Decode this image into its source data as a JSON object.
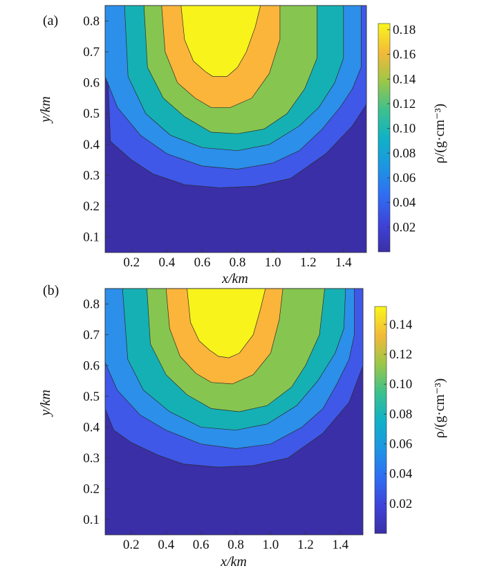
{
  "chart_data": [
    {
      "type": "heatmap",
      "panel_label": "(a)",
      "xlabel": "x/km",
      "ylabel": "y/km",
      "colorbar_label": "ρ/(g·cm⁻³)",
      "x_ticks": [
        0.2,
        0.4,
        0.6,
        0.8,
        1.0,
        1.2,
        1.4
      ],
      "x_tick_labels": [
        "0.2",
        "0.4",
        "0.6",
        "0.8",
        "1.0",
        "1.2",
        "1.4"
      ],
      "y_ticks": [
        0.1,
        0.2,
        0.3,
        0.4,
        0.5,
        0.6,
        0.7,
        0.8
      ],
      "y_tick_labels": [
        "0.1",
        "0.2",
        "0.3",
        "0.4",
        "0.5",
        "0.6",
        "0.7",
        "0.8"
      ],
      "colorbar_ticks": [
        0.02,
        0.04,
        0.06,
        0.08,
        0.1,
        0.12,
        0.14,
        0.16,
        0.18
      ],
      "colorbar_tick_labels": [
        "0.02",
        "0.04",
        "0.06",
        "0.08",
        "0.10",
        "0.12",
        "0.14",
        "0.16",
        "0.18"
      ],
      "xlim": [
        0.05,
        1.53
      ],
      "ylim": [
        0.85,
        0.05
      ],
      "clim": [
        0.0,
        0.185
      ],
      "y_reversed": true,
      "colormap": "parula",
      "contour_bands": [
        {
          "level": 0.027,
          "color": "#3f58e8",
          "region": {
            "x": [
              0.05,
              0.08,
              0.2,
              0.32,
              0.5,
              0.7,
              0.9,
              1.1,
              1.3,
              1.45,
              1.53,
              1.53
            ],
            "y": [
              0.85,
              0.41,
              0.35,
              0.305,
              0.27,
              0.26,
              0.265,
              0.29,
              0.37,
              0.46,
              0.53,
              0.85
            ]
          }
        },
        {
          "level": 0.055,
          "color": "#2c8fe9",
          "region": {
            "x": [
              0.05,
              0.05,
              0.12,
              0.25,
              0.4,
              0.6,
              0.8,
              1.0,
              1.15,
              1.28,
              1.38,
              1.45,
              1.5,
              1.5
            ],
            "y": [
              0.85,
              0.62,
              0.52,
              0.43,
              0.37,
              0.33,
              0.32,
              0.34,
              0.38,
              0.45,
              0.52,
              0.58,
              0.65,
              0.85
            ]
          }
        },
        {
          "level": 0.085,
          "color": "#15b0b4",
          "region": {
            "x": [
              0.16,
              0.18,
              0.28,
              0.42,
              0.6,
              0.8,
              0.98,
              1.15,
              1.26,
              1.35,
              1.4,
              1.4
            ],
            "y": [
              0.85,
              0.62,
              0.5,
              0.43,
              0.39,
              0.38,
              0.4,
              0.46,
              0.52,
              0.6,
              0.68,
              0.85
            ]
          }
        },
        {
          "level": 0.115,
          "color": "#86c650",
          "region": {
            "x": [
              0.27,
              0.29,
              0.38,
              0.5,
              0.65,
              0.8,
              0.95,
              1.08,
              1.18,
              1.25,
              1.25
            ],
            "y": [
              0.85,
              0.65,
              0.55,
              0.49,
              0.44,
              0.435,
              0.45,
              0.5,
              0.58,
              0.68,
              0.85
            ]
          }
        },
        {
          "level": 0.145,
          "color": "#fab53a",
          "region": {
            "x": [
              0.37,
              0.39,
              0.46,
              0.56,
              0.65,
              0.76,
              0.88,
              0.98,
              1.04,
              1.04
            ],
            "y": [
              0.85,
              0.7,
              0.6,
              0.55,
              0.52,
              0.52,
              0.55,
              0.63,
              0.74,
              0.85
            ]
          }
        },
        {
          "level": 0.175,
          "color": "#f7f31b",
          "region": {
            "x": [
              0.48,
              0.5,
              0.55,
              0.62,
              0.66,
              0.74,
              0.8,
              0.85,
              0.9,
              0.93
            ],
            "y": [
              0.85,
              0.74,
              0.67,
              0.635,
              0.62,
              0.62,
              0.65,
              0.7,
              0.78,
              0.85
            ]
          }
        }
      ]
    },
    {
      "type": "heatmap",
      "panel_label": "(b)",
      "xlabel": "x/km",
      "ylabel": "y/km",
      "colorbar_label": "ρ/(g·cm⁻³)",
      "x_ticks": [
        0.2,
        0.4,
        0.6,
        0.8,
        1.0,
        1.2,
        1.4
      ],
      "x_tick_labels": [
        "0.2",
        "0.4",
        "0.6",
        "0.8",
        "1.0",
        "1.2",
        "1.4"
      ],
      "y_ticks": [
        0.1,
        0.2,
        0.3,
        0.4,
        0.5,
        0.6,
        0.7,
        0.8
      ],
      "y_tick_labels": [
        "0.1",
        "0.2",
        "0.3",
        "0.4",
        "0.5",
        "0.6",
        "0.7",
        "0.8"
      ],
      "colorbar_ticks": [
        0.02,
        0.04,
        0.06,
        0.08,
        0.1,
        0.12,
        0.14
      ],
      "colorbar_tick_labels": [
        "0.02",
        "0.04",
        "0.06",
        "0.08",
        "0.10",
        "0.12",
        "0.14"
      ],
      "xlim": [
        0.05,
        1.53
      ],
      "ylim": [
        0.85,
        0.05
      ],
      "clim": [
        0.0,
        0.152
      ],
      "y_reversed": true,
      "colormap": "parula",
      "contour_bands": [
        {
          "level": 0.022,
          "color": "#3f58e8",
          "region": {
            "x": [
              0.05,
              0.05,
              0.1,
              0.2,
              0.35,
              0.5,
              0.7,
              0.9,
              1.1,
              1.3,
              1.45,
              1.53,
              1.53
            ],
            "y": [
              0.85,
              0.46,
              0.39,
              0.35,
              0.31,
              0.28,
              0.27,
              0.275,
              0.3,
              0.38,
              0.48,
              0.6,
              0.85
            ]
          }
        },
        {
          "level": 0.044,
          "color": "#2c8fe9",
          "region": {
            "x": [
              0.05,
              0.05,
              0.12,
              0.25,
              0.4,
              0.6,
              0.8,
              1.0,
              1.18,
              1.3,
              1.38,
              1.45,
              1.48,
              1.48
            ],
            "y": [
              0.85,
              0.61,
              0.52,
              0.44,
              0.39,
              0.345,
              0.33,
              0.345,
              0.4,
              0.46,
              0.54,
              0.62,
              0.7,
              0.85
            ]
          }
        },
        {
          "level": 0.066,
          "color": "#15b0b4",
          "region": {
            "x": [
              0.15,
              0.18,
              0.27,
              0.42,
              0.6,
              0.8,
              0.98,
              1.15,
              1.27,
              1.37,
              1.42,
              1.43
            ],
            "y": [
              0.85,
              0.62,
              0.52,
              0.45,
              0.4,
              0.39,
              0.41,
              0.47,
              0.55,
              0.64,
              0.72,
              0.85
            ]
          }
        },
        {
          "level": 0.088,
          "color": "#86c650",
          "region": {
            "x": [
              0.29,
              0.31,
              0.4,
              0.52,
              0.66,
              0.82,
              0.98,
              1.12,
              1.2,
              1.28,
              1.31
            ],
            "y": [
              0.85,
              0.67,
              0.57,
              0.505,
              0.46,
              0.45,
              0.47,
              0.53,
              0.6,
              0.7,
              0.85
            ]
          }
        },
        {
          "level": 0.11,
          "color": "#fab53a",
          "region": {
            "x": [
              0.4,
              0.42,
              0.48,
              0.57,
              0.66,
              0.78,
              0.9,
              1.0,
              1.05,
              1.07
            ],
            "y": [
              0.85,
              0.72,
              0.63,
              0.575,
              0.545,
              0.54,
              0.57,
              0.64,
              0.75,
              0.85
            ]
          }
        },
        {
          "level": 0.132,
          "color": "#f7f31b",
          "region": {
            "x": [
              0.52,
              0.54,
              0.59,
              0.65,
              0.7,
              0.76,
              0.82,
              0.9,
              0.94,
              0.97
            ],
            "y": [
              0.85,
              0.74,
              0.68,
              0.65,
              0.63,
              0.625,
              0.64,
              0.7,
              0.78,
              0.85
            ]
          }
        }
      ]
    }
  ]
}
